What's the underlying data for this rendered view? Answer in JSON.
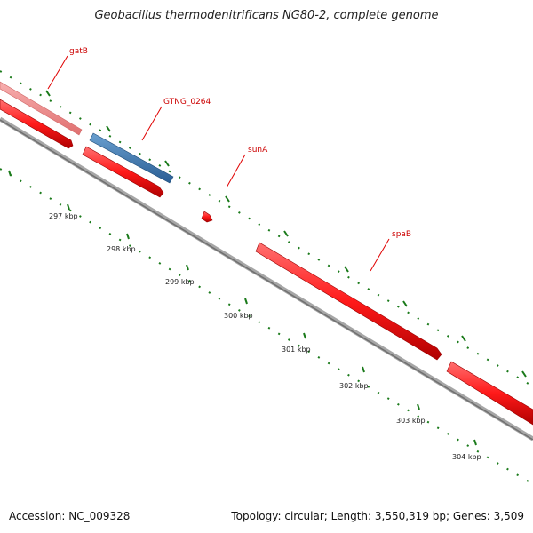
{
  "title": "Geobacillus thermodenitrificans NG80-2, complete genome",
  "footer": {
    "accession": "Accession: NC_009328",
    "summary": "Topology: circular; Length: 3,550,319 bp; Genes: 3,509"
  },
  "colors": {
    "gene_forward": "#ff1a1a",
    "gene_faded": "#f08080",
    "gene_highlight": "#3d77b0",
    "backbone": "#808080",
    "ticks": "#1a7a1a",
    "label_line": "#e00000"
  },
  "genes": [
    {
      "name": "gatB",
      "label": "gatB"
    },
    {
      "name": "GTNG_0264",
      "label": "GTNG_0264"
    },
    {
      "name": "sunA",
      "label": "sunA"
    },
    {
      "name": "spaB",
      "label": "spaB"
    }
  ],
  "kbp_labels": [
    "297 kbp",
    "298 kbp",
    "299 kbp",
    "300 kbp",
    "301 kbp",
    "302 kbp",
    "303 kbp",
    "304 kbp"
  ]
}
